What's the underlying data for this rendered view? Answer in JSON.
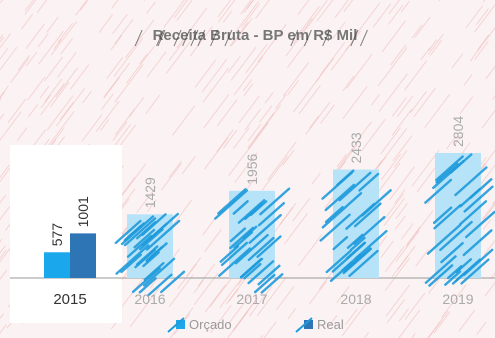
{
  "chart_data": {
    "type": "bar",
    "title": "Receita Bruta - BP em R$ Mil",
    "categories": [
      "2015",
      "2016",
      "2017",
      "2018",
      "2019"
    ],
    "series": [
      {
        "name": "Orçado",
        "values": [
          577,
          null,
          null,
          null,
          null
        ]
      },
      {
        "name": "Real",
        "values": [
          1001,
          1429,
          1956,
          2433,
          2804
        ]
      }
    ],
    "ylim": [
      0,
      2804
    ],
    "legend_position": "bottom",
    "grid": false
  },
  "colors": {
    "orcado": "#1aa7ec",
    "real": "#2e75b6",
    "projected": "#b7e3f8",
    "hatch_pink": "#f0b9b9",
    "hatch_blue": "#1f9bdc",
    "hatch_dark": "#333333",
    "value_label": "#333333",
    "value_label_faded": "#aaaaaa"
  }
}
